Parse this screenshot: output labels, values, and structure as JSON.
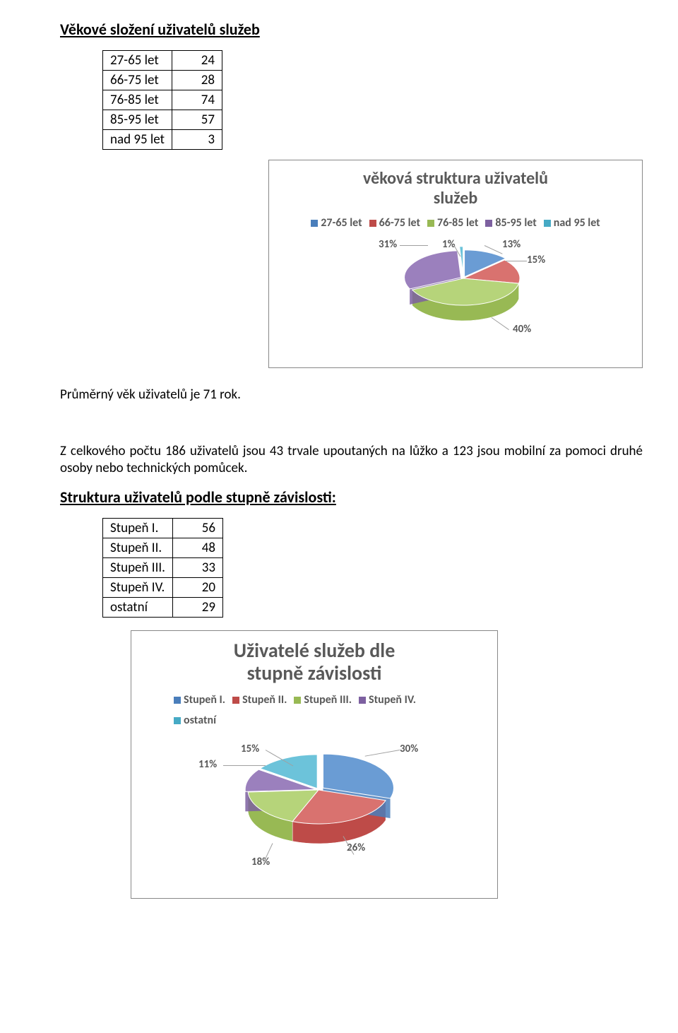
{
  "section1": {
    "heading": "Věkové složení uživatelů služeb",
    "table": {
      "rows": [
        [
          "27-65 let",
          "24"
        ],
        [
          "66-75 let",
          "28"
        ],
        [
          "76-85 let",
          "74"
        ],
        [
          "85-95 let",
          "57"
        ],
        [
          "nad 95 let",
          "3"
        ]
      ]
    },
    "chart": {
      "title_line1": "věková struktura uživatelů",
      "title_line2": "služeb",
      "legend": [
        {
          "label": "27-65 let",
          "color": "#4a7ebb"
        },
        {
          "label": "66-75 let",
          "color": "#be4b48"
        },
        {
          "label": "76-85 let",
          "color": "#98b954"
        },
        {
          "label": "85-95 let",
          "color": "#7d60a0"
        },
        {
          "label": "nad 95 let",
          "color": "#46aac5"
        }
      ],
      "slices": [
        {
          "value": 13,
          "color_top": "#6a9cd4",
          "color_side": "#4a7ebb",
          "explode": 4
        },
        {
          "value": 15,
          "color_top": "#d9726f",
          "color_side": "#be4b48",
          "explode": 0
        },
        {
          "value": 40,
          "color_top": "#b6d47a",
          "color_side": "#98b954",
          "explode": 0
        },
        {
          "value": 31,
          "color_top": "#9b80bd",
          "color_side": "#7d60a0",
          "explode": 4
        },
        {
          "value": 1,
          "color_top": "#6cc3da",
          "color_side": "#46aac5",
          "explode": 12
        }
      ],
      "labels": {
        "l31": "31%",
        "l1": "1%",
        "l13": "13%",
        "l15": "15%",
        "l40": "40%"
      }
    },
    "avg_text": "Průměrný věk uživatelů je 71 rok."
  },
  "para": "Z celkového počtu 186 uživatelů jsou 43 trvale upoutaných na  lůžko a 123 jsou mobilní za pomoci druhé osoby nebo technických pomůcek.",
  "section2": {
    "heading": "Struktura uživatelů podle stupně závislosti:",
    "table": {
      "rows": [
        [
          "Stupeň I.",
          "56"
        ],
        [
          "Stupeň II.",
          "48"
        ],
        [
          "Stupeň III.",
          "33"
        ],
        [
          "Stupeň IV.",
          "20"
        ],
        [
          "ostatní",
          "29"
        ]
      ]
    },
    "chart": {
      "title_line1": "Uživatelé služeb dle",
      "title_line2": "stupně závislosti",
      "legend": [
        {
          "label": "Stupeň I.",
          "color": "#4a7ebb"
        },
        {
          "label": "Stupeň II.",
          "color": "#be4b48"
        },
        {
          "label": "Stupeň III.",
          "color": "#98b954"
        },
        {
          "label": "Stupeň IV.",
          "color": "#7d60a0"
        },
        {
          "label": "ostatní",
          "color": "#46aac5"
        }
      ],
      "slices": [
        {
          "value": 30,
          "color_top": "#6a9cd4",
          "color_side": "#4a7ebb",
          "explode": 8
        },
        {
          "value": 26,
          "color_top": "#d9726f",
          "color_side": "#be4b48",
          "explode": 0
        },
        {
          "value": 18,
          "color_top": "#b6d47a",
          "color_side": "#98b954",
          "explode": 0
        },
        {
          "value": 11,
          "color_top": "#9b80bd",
          "color_side": "#7d60a0",
          "explode": 4
        },
        {
          "value": 15,
          "color_top": "#6cc3da",
          "color_side": "#46aac5",
          "explode": 4
        }
      ],
      "labels": {
        "l11": "11%",
        "l15": "15%",
        "l30": "30%",
        "l26": "26%",
        "l18": "18%"
      }
    }
  }
}
